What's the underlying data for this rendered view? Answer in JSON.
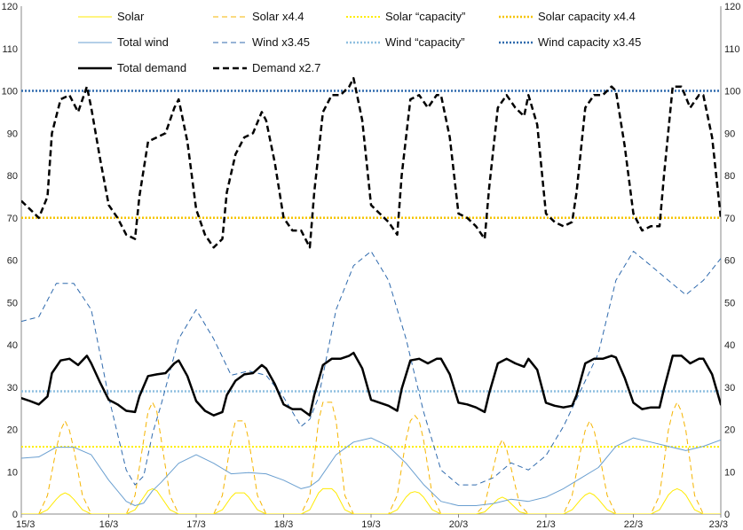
{
  "chart_data": {
    "type": "line",
    "ylim": [
      0,
      120
    ],
    "yticks": [
      0,
      10,
      20,
      30,
      40,
      50,
      60,
      70,
      80,
      90,
      100,
      110,
      120
    ],
    "x_range": [
      0,
      8
    ],
    "xtick_labels": [
      "15/3",
      "16/3",
      "17/3",
      "18/3",
      "19/3",
      "20/3",
      "21/3",
      "22/3",
      "23/3"
    ],
    "grid": "none",
    "legend_position": "top",
    "series": [
      {
        "name": "Solar",
        "color": "#ffea00",
        "dash": "solid",
        "width": 1,
        "x": [
          0,
          0.1,
          0.2,
          0.3,
          0.4,
          0.45,
          0.5,
          0.55,
          0.6,
          0.7,
          0.8,
          1,
          1.2,
          1.3,
          1.4,
          1.45,
          1.5,
          1.55,
          1.6,
          1.7,
          1.8,
          2,
          2.2,
          2.3,
          2.4,
          2.45,
          2.5,
          2.55,
          2.6,
          2.7,
          2.8,
          3,
          3.2,
          3.3,
          3.4,
          3.45,
          3.5,
          3.55,
          3.6,
          3.7,
          3.8,
          4,
          4.2,
          4.3,
          4.4,
          4.45,
          4.5,
          4.55,
          4.6,
          4.7,
          4.8,
          5,
          5.2,
          5.3,
          5.4,
          5.45,
          5.5,
          5.55,
          5.6,
          5.7,
          5.8,
          6,
          6.2,
          6.3,
          6.4,
          6.45,
          6.5,
          6.55,
          6.6,
          6.7,
          6.8,
          7,
          7.2,
          7.3,
          7.4,
          7.45,
          7.5,
          7.55,
          7.6,
          7.7,
          7.8,
          8
        ],
        "y": [
          0,
          0,
          0,
          1,
          3.5,
          4.5,
          5,
          4.5,
          3.5,
          1,
          0,
          0,
          0,
          1,
          4,
          5.5,
          6,
          5.5,
          4,
          1,
          0,
          0,
          0,
          1,
          4,
          5,
          5,
          5,
          4,
          1,
          0,
          0,
          0,
          1,
          5,
          6,
          6,
          6,
          5,
          1,
          0,
          0,
          0,
          1,
          4,
          5,
          5.3,
          5,
          4,
          1,
          0,
          0,
          0,
          0.5,
          2.5,
          3.5,
          4,
          3.5,
          2.5,
          0.5,
          0,
          0,
          0,
          1,
          3.5,
          4.5,
          5,
          4.5,
          3.5,
          1,
          0,
          0,
          0,
          1,
          4.5,
          5.5,
          6,
          5.5,
          4.5,
          1,
          0,
          0
        ]
      },
      {
        "name": "Solar x4.4",
        "color": "#f5b400",
        "dash": "6,4",
        "width": 1,
        "x": [
          0,
          0.1,
          0.2,
          0.3,
          0.4,
          0.45,
          0.5,
          0.55,
          0.6,
          0.7,
          0.8,
          1,
          1.2,
          1.3,
          1.4,
          1.45,
          1.5,
          1.55,
          1.6,
          1.7,
          1.8,
          2,
          2.2,
          2.3,
          2.4,
          2.45,
          2.5,
          2.55,
          2.6,
          2.7,
          2.8,
          3,
          3.2,
          3.3,
          3.4,
          3.45,
          3.5,
          3.55,
          3.6,
          3.7,
          3.8,
          4,
          4.2,
          4.3,
          4.4,
          4.45,
          4.5,
          4.55,
          4.6,
          4.7,
          4.8,
          5,
          5.2,
          5.3,
          5.4,
          5.45,
          5.5,
          5.55,
          5.6,
          5.7,
          5.8,
          6,
          6.2,
          6.3,
          6.4,
          6.45,
          6.5,
          6.55,
          6.6,
          6.7,
          6.8,
          7,
          7.2,
          7.3,
          7.4,
          7.45,
          7.5,
          7.55,
          7.6,
          7.7,
          7.8,
          8
        ],
        "y": [
          0,
          0,
          0,
          4.4,
          15.4,
          19.8,
          22,
          19.8,
          15.4,
          4.4,
          0,
          0,
          0,
          4.4,
          17.6,
          24.2,
          26.4,
          24.2,
          17.6,
          4.4,
          0,
          0,
          0,
          4.4,
          17.6,
          22,
          22,
          22,
          17.6,
          4.4,
          0,
          0,
          0,
          4.4,
          22,
          26.4,
          26.4,
          26.4,
          22,
          4.4,
          0,
          0,
          0,
          4.4,
          17.6,
          22,
          23.3,
          22,
          17.6,
          4.4,
          0,
          0,
          0,
          2.2,
          11,
          15.4,
          17.6,
          15.4,
          11,
          2.2,
          0,
          0,
          0,
          4.4,
          15.4,
          19.8,
          22,
          19.8,
          15.4,
          4.4,
          0,
          0,
          0,
          4.4,
          19.8,
          24.2,
          26.4,
          24.2,
          19.8,
          4.4,
          0,
          0
        ]
      },
      {
        "name": "Solar “capacity”",
        "color": "#ffee00",
        "dash": "2,2",
        "width": 2,
        "x": [
          0,
          8
        ],
        "y": [
          15.9,
          15.9
        ]
      },
      {
        "name": "Solar capacity x4.4",
        "color": "#f5c400",
        "dash": "2,2",
        "width": 2.5,
        "x": [
          0,
          8
        ],
        "y": [
          70,
          70
        ]
      },
      {
        "name": "Total wind",
        "color": "#6a9fd0",
        "dash": "solid",
        "width": 1,
        "x": [
          0,
          0.2,
          0.4,
          0.6,
          0.8,
          1.0,
          1.2,
          1.3,
          1.4,
          1.5,
          1.6,
          1.8,
          2.0,
          2.2,
          2.4,
          2.6,
          2.8,
          3.0,
          3.2,
          3.3,
          3.4,
          3.6,
          3.8,
          4.0,
          4.2,
          4.4,
          4.6,
          4.8,
          5.0,
          5.2,
          5.4,
          5.6,
          5.8,
          6.0,
          6.2,
          6.4,
          6.6,
          6.8,
          7.0,
          7.2,
          7.4,
          7.6,
          7.8,
          8.0
        ],
        "y": [
          13.2,
          13.5,
          15.8,
          15.8,
          14,
          8,
          3,
          2,
          2.6,
          5.5,
          7.5,
          12,
          14,
          12,
          9.5,
          9.8,
          9.5,
          8,
          6,
          6.5,
          8,
          14,
          17,
          18,
          16,
          12,
          7,
          3,
          2,
          2,
          2.5,
          3.5,
          3,
          4,
          6,
          8.5,
          11,
          16,
          18,
          17,
          16,
          15,
          16,
          17.5
        ]
      },
      {
        "name": "Wind x3.45",
        "color": "#2f6aad",
        "dash": "6,4",
        "width": 1,
        "x": [
          0,
          0.2,
          0.4,
          0.6,
          0.8,
          1.0,
          1.2,
          1.3,
          1.4,
          1.5,
          1.6,
          1.8,
          2.0,
          2.2,
          2.4,
          2.6,
          2.8,
          3.0,
          3.2,
          3.3,
          3.4,
          3.6,
          3.8,
          4.0,
          4.2,
          4.4,
          4.6,
          4.8,
          5.0,
          5.2,
          5.4,
          5.6,
          5.8,
          6.0,
          6.2,
          6.4,
          6.6,
          6.8,
          7.0,
          7.2,
          7.4,
          7.6,
          7.8,
          8.0
        ],
        "y": [
          45.5,
          46.6,
          54.5,
          54.5,
          48.3,
          27.6,
          10.4,
          6.9,
          9,
          19,
          25.9,
          41.4,
          48.3,
          41.4,
          32.8,
          33.8,
          32.8,
          27.6,
          20.7,
          22.4,
          27.6,
          48.3,
          58.7,
          62.1,
          55.2,
          41.4,
          24.2,
          10.4,
          6.9,
          6.9,
          8.6,
          12.1,
          10.4,
          13.8,
          20.7,
          29.3,
          38,
          55.2,
          62.1,
          58.7,
          55.2,
          51.8,
          55.2,
          60.4
        ]
      },
      {
        "name": "Wind “capacity”",
        "color": "#8fbfe0",
        "dash": "2,2",
        "width": 2.5,
        "x": [
          0,
          8
        ],
        "y": [
          29,
          29
        ]
      },
      {
        "name": "Wind capacity x3.45",
        "color": "#2f6aad",
        "dash": "2,2",
        "width": 2.5,
        "x": [
          0,
          8
        ],
        "y": [
          100,
          100
        ]
      },
      {
        "name": "Total demand",
        "color": "#000000",
        "dash": "solid",
        "width": 2.5,
        "x": [
          0,
          0.1,
          0.2,
          0.3,
          0.35,
          0.45,
          0.55,
          0.65,
          0.75,
          0.8,
          0.9,
          1.0,
          1.1,
          1.2,
          1.3,
          1.35,
          1.45,
          1.55,
          1.65,
          1.75,
          1.8,
          1.9,
          2.0,
          2.1,
          2.2,
          2.3,
          2.35,
          2.45,
          2.55,
          2.65,
          2.75,
          2.8,
          2.9,
          3.0,
          3.1,
          3.2,
          3.3,
          3.35,
          3.45,
          3.55,
          3.65,
          3.75,
          3.8,
          3.9,
          4.0,
          4.1,
          4.2,
          4.3,
          4.35,
          4.45,
          4.55,
          4.65,
          4.75,
          4.8,
          4.9,
          5.0,
          5.1,
          5.2,
          5.3,
          5.35,
          5.45,
          5.55,
          5.65,
          5.75,
          5.8,
          5.9,
          6.0,
          6.1,
          6.2,
          6.3,
          6.35,
          6.45,
          6.55,
          6.65,
          6.75,
          6.8,
          6.9,
          7.0,
          7.1,
          7.2,
          7.3,
          7.35,
          7.45,
          7.55,
          7.65,
          7.75,
          7.8,
          7.9,
          8.0
        ],
        "y": [
          27.4,
          26.7,
          25.9,
          27.8,
          33.3,
          36.3,
          36.7,
          35.2,
          37.4,
          35.6,
          31.1,
          27,
          25.9,
          24.4,
          24.1,
          27.8,
          32.6,
          33,
          33.3,
          35.6,
          36.3,
          32.6,
          26.7,
          24.4,
          23.3,
          24.1,
          28.1,
          31.5,
          33,
          33.3,
          35.2,
          34.4,
          30.7,
          25.9,
          24.8,
          24.8,
          23.3,
          28.1,
          35.2,
          36.7,
          36.7,
          37.4,
          38.1,
          34.4,
          27,
          26.3,
          25.6,
          24.4,
          29.6,
          36.3,
          36.7,
          35.6,
          36.7,
          36.7,
          33,
          26.3,
          25.9,
          25.2,
          24.1,
          28.5,
          35.6,
          36.7,
          35.6,
          34.8,
          36.7,
          34.1,
          26.3,
          25.6,
          25.2,
          25.6,
          28.1,
          35.6,
          36.7,
          36.7,
          37.4,
          37,
          32.2,
          26.3,
          24.8,
          25.2,
          25.2,
          29.6,
          37.4,
          37.4,
          35.6,
          36.7,
          36.7,
          33,
          25.9
        ]
      },
      {
        "name": "Demand x2.7",
        "color": "#000000",
        "dash": "7,4",
        "width": 2.5,
        "x": [
          0,
          0.1,
          0.2,
          0.3,
          0.35,
          0.45,
          0.55,
          0.65,
          0.75,
          0.8,
          0.9,
          1.0,
          1.1,
          1.2,
          1.3,
          1.35,
          1.45,
          1.55,
          1.65,
          1.75,
          1.8,
          1.9,
          2.0,
          2.1,
          2.2,
          2.3,
          2.35,
          2.45,
          2.55,
          2.65,
          2.75,
          2.8,
          2.9,
          3.0,
          3.1,
          3.2,
          3.3,
          3.35,
          3.45,
          3.55,
          3.65,
          3.75,
          3.8,
          3.9,
          4.0,
          4.1,
          4.2,
          4.3,
          4.35,
          4.45,
          4.55,
          4.65,
          4.75,
          4.8,
          4.9,
          5.0,
          5.1,
          5.2,
          5.3,
          5.35,
          5.45,
          5.55,
          5.65,
          5.75,
          5.8,
          5.9,
          6.0,
          6.1,
          6.2,
          6.3,
          6.35,
          6.45,
          6.55,
          6.65,
          6.75,
          6.8,
          6.9,
          7.0,
          7.1,
          7.2,
          7.3,
          7.35,
          7.45,
          7.55,
          7.65,
          7.75,
          7.8,
          7.9,
          8.0
        ],
        "y": [
          74,
          72,
          70,
          75,
          90,
          98,
          99,
          95,
          101,
          96,
          84,
          73,
          70,
          66,
          65,
          75,
          88,
          89,
          90,
          96,
          98,
          88,
          72,
          66,
          63,
          65,
          76,
          85,
          89,
          90,
          95,
          93,
          83,
          70,
          67,
          67,
          63,
          76,
          95,
          99,
          99,
          101,
          103,
          93,
          73,
          71,
          69,
          66,
          80,
          98,
          99,
          96,
          99,
          99,
          89,
          71,
          70,
          68,
          65,
          77,
          96,
          99,
          96,
          94,
          99,
          92,
          71,
          69,
          68,
          69,
          76,
          96,
          99,
          99,
          101,
          100,
          87,
          71,
          67,
          68,
          68,
          80,
          101,
          101,
          96,
          99,
          99,
          89,
          70
        ]
      }
    ]
  }
}
